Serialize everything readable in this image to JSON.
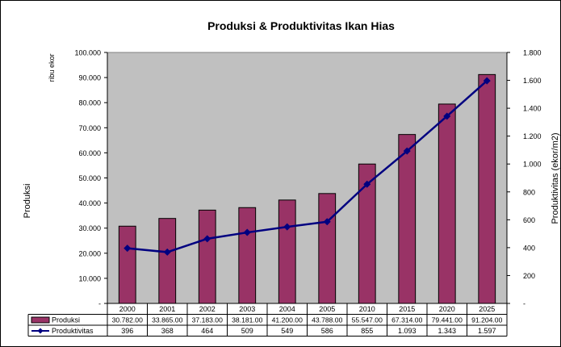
{
  "chart_data": {
    "type": "bar",
    "title": "Produksi & Produktivitas Ikan Hias",
    "unit_label": "ribu ekor",
    "ylabel": "Produksi",
    "y2label": "Produktivitas (ekor/m2)",
    "categories": [
      "2000",
      "2001",
      "2002",
      "2003",
      "2004",
      "2005",
      "2010",
      "2015",
      "2020",
      "2025"
    ],
    "ylim": [
      0,
      100000
    ],
    "y2lim": [
      0,
      1800
    ],
    "yticks": [
      "-",
      "10.000",
      "20.000",
      "30.000",
      "40.000",
      "50.000",
      "60.000",
      "70.000",
      "80.000",
      "90.000",
      "100.000"
    ],
    "y2ticks": [
      "-",
      "200",
      "400",
      "600",
      "800",
      "1.000",
      "1.200",
      "1.400",
      "1.600",
      "1.800"
    ],
    "series": [
      {
        "name": "Produksi",
        "type": "bar",
        "axis": "left",
        "color": "#993366",
        "values": [
          30782,
          33865,
          37183,
          38181,
          41200,
          43788,
          55547,
          67314,
          79441,
          91204
        ],
        "labels": [
          "30.782.00",
          "33.865.00",
          "37.183.00",
          "38.181.00",
          "41.200.00",
          "43.788.00",
          "55.547.00",
          "67.314.00",
          "79.441.00",
          "91.204.00"
        ]
      },
      {
        "name": "Produktivitas",
        "type": "line",
        "axis": "right",
        "color": "#000080",
        "values": [
          396,
          368,
          464,
          509,
          549,
          586,
          855,
          1093,
          1343,
          1597
        ],
        "labels": [
          "396",
          "368",
          "464",
          "509",
          "549",
          "586",
          "855",
          "1.093",
          "1.343",
          "1.597"
        ]
      }
    ],
    "plot_background": "#c0c0c0",
    "grid": false,
    "legend": "data-table"
  }
}
